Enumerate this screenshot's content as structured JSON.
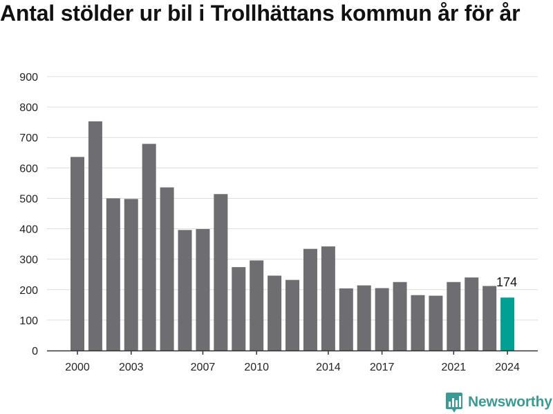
{
  "chart_data": {
    "type": "bar",
    "title": "Antal stölder ur bil i Trollhättans kommun år för år",
    "xlabel": "",
    "ylabel": "",
    "categories": [
      2000,
      2001,
      2002,
      2003,
      2004,
      2005,
      2006,
      2007,
      2008,
      2009,
      2010,
      2011,
      2012,
      2013,
      2014,
      2015,
      2016,
      2017,
      2018,
      2019,
      2020,
      2021,
      2022,
      2023,
      2024
    ],
    "values": [
      636,
      753,
      500,
      498,
      679,
      536,
      396,
      399,
      514,
      274,
      296,
      246,
      232,
      334,
      342,
      204,
      214,
      205,
      225,
      182,
      180,
      225,
      240,
      212,
      174
    ],
    "x_tick_labels": [
      "2000",
      "2003",
      "2007",
      "2010",
      "2014",
      "2017",
      "2021",
      "2024"
    ],
    "y_tick_labels": [
      "0",
      "100",
      "200",
      "300",
      "400",
      "500",
      "600",
      "700",
      "800",
      "900"
    ],
    "ylim": [
      0,
      900
    ],
    "grid": true,
    "legend": "none",
    "highlight": {
      "category": 2024,
      "label": "174"
    },
    "colors": {
      "bar": "#6e6d72",
      "highlight": "#00a095",
      "grid": "#dddddd",
      "axis": "#333333",
      "tick_text": "#222222"
    }
  },
  "branding": {
    "name": "Newsworthy",
    "logo_icon": "bar-chart-speech-bubble-icon",
    "color": "#3b9a93"
  }
}
